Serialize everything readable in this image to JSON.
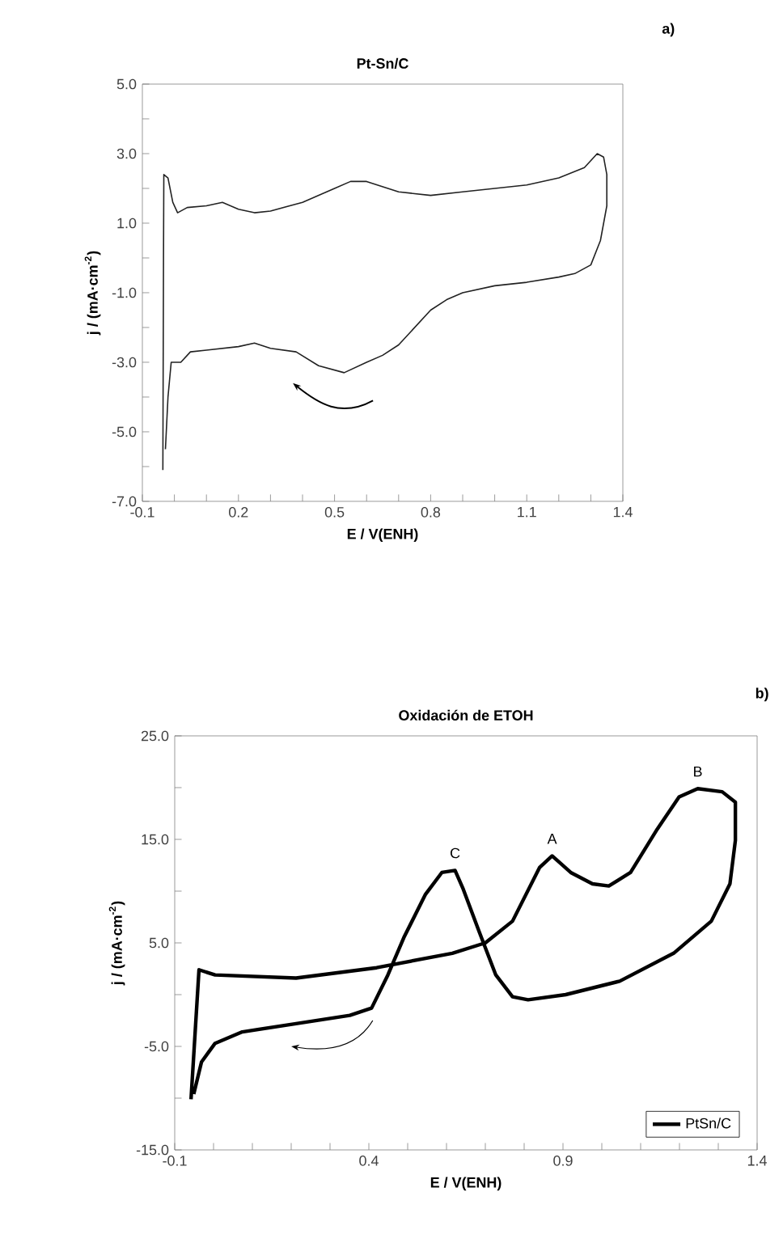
{
  "chart_data": [
    {
      "type": "line",
      "title": "Pt-Sn/C",
      "xlabel": "E / V(ENH)",
      "ylabel": "j / (mA·cm$^{-2}$)",
      "annotations": [
        "a)"
      ],
      "xlim": [
        -0.1,
        1.4
      ],
      "ylim": [
        -7,
        5
      ],
      "xticks": [
        {
          "value": -0.1,
          "label": "-0.1"
        },
        {
          "value": 0,
          "label": null
        },
        {
          "value": 0.1,
          "label": null
        },
        {
          "value": 0.2,
          "label": "0.2"
        },
        {
          "value": 0.3,
          "label": null
        },
        {
          "value": 0.4,
          "label": null
        },
        {
          "value": 0.5,
          "label": "0.5"
        },
        {
          "value": 0.6,
          "label": null
        },
        {
          "value": 0.7,
          "label": null
        },
        {
          "value": 0.8,
          "label": "0.8"
        },
        {
          "value": 0.9,
          "label": null
        },
        {
          "value": 1.0,
          "label": null
        },
        {
          "value": 1.1,
          "label": "1.1"
        },
        {
          "value": 1.2,
          "label": null
        },
        {
          "value": 1.3,
          "label": null
        },
        {
          "value": 1.4,
          "label": "1.4"
        }
      ],
      "yticks": [
        {
          "value": -7,
          "label": "-7.0"
        },
        {
          "value": -6,
          "label": null
        },
        {
          "value": -5,
          "label": "-5.0"
        },
        {
          "value": -4,
          "label": null
        },
        {
          "value": -3,
          "label": "-3.0"
        },
        {
          "value": -2,
          "label": null
        },
        {
          "value": -1,
          "label": "-1.0"
        },
        {
          "value": 0,
          "label": null
        },
        {
          "value": 1,
          "label": "1.0"
        },
        {
          "value": 2,
          "label": null
        },
        {
          "value": 3,
          "label": "3.0"
        },
        {
          "value": 4,
          "label": null
        },
        {
          "value": 5,
          "label": "5.0"
        }
      ],
      "legend": false,
      "marker": "none",
      "line_style": "solid",
      "series": [
        {
          "color": "#222222",
          "x": [
            -0.036,
            -0.034,
            -0.033,
            -0.02,
            -0.005,
            0.01,
            0.04,
            0.1,
            0.15,
            0.2,
            0.25,
            0.3,
            0.4,
            0.5,
            0.55,
            0.6,
            0.7,
            0.8,
            0.9,
            1.0,
            1.1,
            1.2,
            1.28,
            1.32,
            1.34,
            1.35,
            1.35,
            1.33,
            1.3,
            1.25,
            1.2,
            1.1,
            1.0,
            0.9,
            0.85,
            0.8,
            0.75,
            0.7,
            0.65,
            0.6,
            0.53,
            0.45,
            0.38,
            0.3,
            0.25,
            0.2,
            0.1,
            0.05,
            0.02,
            -0.01,
            -0.02,
            -0.028
          ],
          "values": [
            -6.1,
            0,
            2.4,
            2.3,
            1.6,
            1.3,
            1.45,
            1.5,
            1.6,
            1.4,
            1.3,
            1.35,
            1.6,
            2.0,
            2.2,
            2.2,
            1.9,
            1.8,
            1.9,
            2.0,
            2.1,
            2.3,
            2.6,
            3.0,
            2.9,
            2.4,
            1.5,
            0.5,
            -0.2,
            -0.45,
            -0.55,
            -0.7,
            -0.8,
            -1.0,
            -1.2,
            -1.5,
            -2.0,
            -2.5,
            -2.8,
            -3.0,
            -3.3,
            -3.1,
            -2.7,
            -2.6,
            -2.45,
            -2.55,
            -2.65,
            -2.7,
            -3.0,
            -3.0,
            -4.0,
            -5.5
          ]
        }
      ]
    },
    {
      "type": "line",
      "title": "Oxidación de ETOH",
      "xlabel": "E / V(ENH)",
      "ylabel": "j / (mA·cm$^{-2}$)",
      "annotations": [
        "b)",
        {
          "text": "C",
          "x": 0.622,
          "y": 12.0
        },
        {
          "text": "A",
          "x": 0.872,
          "y": 13.4
        },
        {
          "text": "B",
          "x": 1.247,
          "y": 19.9
        }
      ],
      "xlim": [
        -0.1,
        1.4
      ],
      "ylim": [
        -15,
        25
      ],
      "xticks": [
        {
          "value": -0.1,
          "label": "-0.1"
        },
        {
          "value": 0,
          "label": null
        },
        {
          "value": 0.1,
          "label": null
        },
        {
          "value": 0.2,
          "label": null
        },
        {
          "value": 0.3,
          "label": null
        },
        {
          "value": 0.4,
          "label": "0.4"
        },
        {
          "value": 0.5,
          "label": null
        },
        {
          "value": 0.6,
          "label": null
        },
        {
          "value": 0.7,
          "label": null
        },
        {
          "value": 0.8,
          "label": null
        },
        {
          "value": 0.9,
          "label": "0.9"
        },
        {
          "value": 1.0,
          "label": null
        },
        {
          "value": 1.1,
          "label": null
        },
        {
          "value": 1.2,
          "label": null
        },
        {
          "value": 1.3,
          "label": null
        },
        {
          "value": 1.4,
          "label": "1.4"
        }
      ],
      "yticks": [
        {
          "value": -15,
          "label": "-15.0"
        },
        {
          "value": -10,
          "label": null
        },
        {
          "value": -5,
          "label": "-5.0"
        },
        {
          "value": 0,
          "label": null
        },
        {
          "value": 5,
          "label": "5.0"
        },
        {
          "value": 10,
          "label": null
        },
        {
          "value": 15,
          "label": "15.0"
        },
        {
          "value": 20,
          "label": null
        },
        {
          "value": 25,
          "label": "25.0"
        }
      ],
      "legend": "bottom right",
      "marker": "none",
      "line_style": "solid",
      "series": [
        {
          "name": "PtSn/C",
          "color": "#000000",
          "x": [
            -0.058,
            -0.0375,
            0.004,
            0.2125,
            0.42,
            0.615,
            0.7,
            0.77,
            0.84,
            0.872,
            0.92,
            0.976,
            1.018,
            1.074,
            1.143,
            1.199,
            1.247,
            1.31,
            1.344,
            1.344,
            1.33,
            1.282,
            1.185,
            1.046,
            0.907,
            0.81,
            0.77,
            0.727,
            0.685,
            0.643,
            0.622,
            0.588,
            0.546,
            0.49,
            0.449,
            0.407,
            0.351,
            0.2125,
            0.074,
            0.004,
            -0.031,
            -0.051
          ],
          "values": [
            -10.1,
            2.4,
            1.9,
            1.6,
            2.6,
            4.0,
            5.0,
            7.1,
            12.3,
            13.4,
            11.8,
            10.7,
            10.5,
            11.8,
            16.0,
            19.1,
            19.9,
            19.6,
            18.6,
            14.9,
            10.7,
            7.1,
            4.0,
            1.3,
            0.0,
            -0.5,
            -0.2,
            1.9,
            6.0,
            10.2,
            12.0,
            11.8,
            9.7,
            5.5,
            1.9,
            -1.3,
            -2.0,
            -2.8,
            -3.6,
            -4.7,
            -6.5,
            -9.6
          ]
        }
      ]
    }
  ]
}
